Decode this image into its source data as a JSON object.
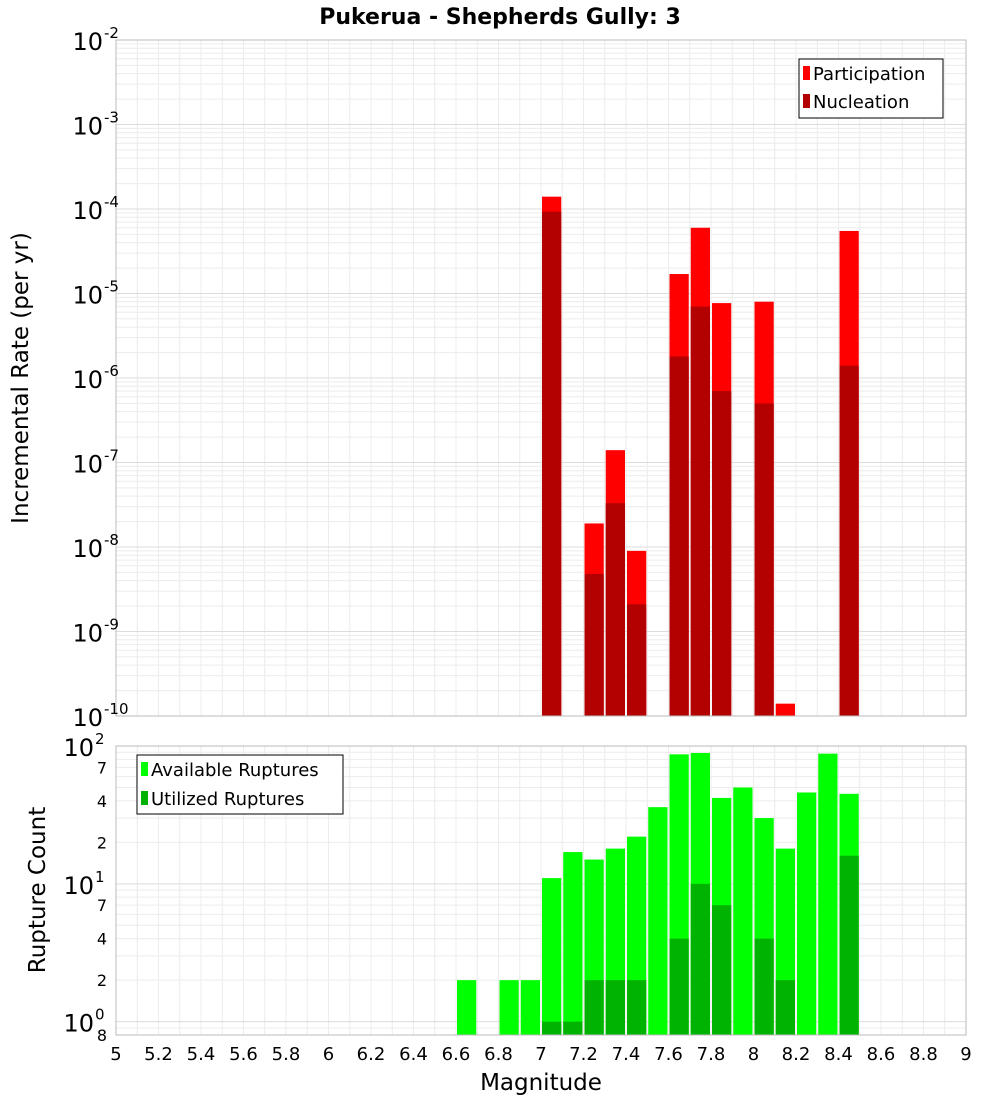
{
  "title": "Pukerua - Shepherds Gully: 3",
  "colors": {
    "participation": "#ff0000",
    "nucleation": "#b30000",
    "available": "#00ff00",
    "utilized": "#00b300",
    "grid": "#ececec",
    "frame": "#bbbbbb"
  },
  "x_axis": {
    "label": "Magnitude",
    "range": [
      5,
      9
    ],
    "ticks": [
      "5",
      "5.2",
      "5.4",
      "5.6",
      "5.8",
      "6",
      "6.2",
      "6.4",
      "6.6",
      "6.8",
      "7",
      "7.2",
      "7.4",
      "7.6",
      "7.8",
      "8",
      "8.2",
      "8.4",
      "8.6",
      "8.8",
      "9"
    ]
  },
  "chart_data": [
    {
      "type": "bar",
      "title": "Pukerua - Shepherds Gully: 3",
      "xlabel": "Magnitude",
      "ylabel": "Incremental Rate (per yr)",
      "yscale": "log",
      "ylim": [
        1e-10,
        0.01
      ],
      "xlim": [
        5,
        9
      ],
      "y_ticks": [
        {
          "base": "10",
          "exp": "-2",
          "value": 0.01
        },
        {
          "base": "10",
          "exp": "-3",
          "value": 0.001
        },
        {
          "base": "10",
          "exp": "-4",
          "value": 0.0001
        },
        {
          "base": "10",
          "exp": "-5",
          "value": 1e-05
        },
        {
          "base": "10",
          "exp": "-6",
          "value": 1e-06
        },
        {
          "base": "10",
          "exp": "-7",
          "value": 1e-07
        },
        {
          "base": "10",
          "exp": "-8",
          "value": 1e-08
        },
        {
          "base": "10",
          "exp": "-9",
          "value": 1e-09
        },
        {
          "base": "10",
          "exp": "-10",
          "value": 1e-10
        }
      ],
      "legend": {
        "position": "top-right",
        "entries": [
          "Participation",
          "Nucleation"
        ]
      },
      "bar_width": 0.1,
      "series": [
        {
          "name": "Participation",
          "color_key": "participation",
          "x": [
            7.05,
            7.25,
            7.35,
            7.45,
            7.65,
            7.75,
            7.85,
            8.05,
            8.15,
            8.45
          ],
          "values": [
            0.00014,
            1.9e-08,
            1.4e-07,
            9e-09,
            1.7e-05,
            6e-05,
            7.7e-06,
            8e-06,
            1.4e-10,
            5.5e-05
          ]
        },
        {
          "name": "Nucleation",
          "color_key": "nucleation",
          "x": [
            7.05,
            7.25,
            7.35,
            7.45,
            7.65,
            7.75,
            7.85,
            8.05,
            8.45
          ],
          "values": [
            9.3e-05,
            4.8e-09,
            3.3e-08,
            2.1e-09,
            1.8e-06,
            7e-06,
            7e-07,
            5e-07,
            1.4e-06
          ]
        }
      ]
    },
    {
      "type": "bar",
      "xlabel": "Magnitude",
      "ylabel": "Rupture Count",
      "yscale": "log",
      "ylim": [
        0.8,
        100
      ],
      "xlim": [
        5,
        9
      ],
      "major_ticks": [
        {
          "base": "10",
          "exp": "2",
          "value": 100
        },
        {
          "base": "10",
          "exp": "1",
          "value": 10
        },
        {
          "base": "10",
          "exp": "0",
          "value": 1
        }
      ],
      "minor_ticks": [
        {
          "label": "7",
          "value": 70
        },
        {
          "label": "4",
          "value": 40
        },
        {
          "label": "2",
          "value": 20
        },
        {
          "label": "7",
          "value": 7
        },
        {
          "label": "4",
          "value": 4
        },
        {
          "label": "2",
          "value": 2
        },
        {
          "label": "8",
          "value": 0.8
        }
      ],
      "legend": {
        "position": "top-left",
        "entries": [
          "Available Ruptures",
          "Utilized Ruptures"
        ]
      },
      "bar_width": 0.1,
      "series": [
        {
          "name": "Available Ruptures",
          "color_key": "available",
          "x": [
            6.65,
            6.85,
            6.95,
            7.05,
            7.15,
            7.25,
            7.35,
            7.45,
            7.55,
            7.65,
            7.75,
            7.85,
            7.95,
            8.05,
            8.15,
            8.25,
            8.35,
            8.45
          ],
          "values": [
            2,
            2,
            2,
            11,
            17,
            15,
            18,
            22,
            36,
            87,
            89,
            42,
            50,
            30,
            18,
            46,
            88,
            45
          ]
        },
        {
          "name": "Utilized Ruptures",
          "color_key": "utilized",
          "x": [
            7.05,
            7.15,
            7.25,
            7.35,
            7.45,
            7.65,
            7.75,
            7.85,
            8.05,
            8.15,
            8.45
          ],
          "values": [
            1,
            1,
            2,
            2,
            2,
            4,
            10,
            7,
            4,
            2,
            16
          ]
        }
      ]
    }
  ]
}
